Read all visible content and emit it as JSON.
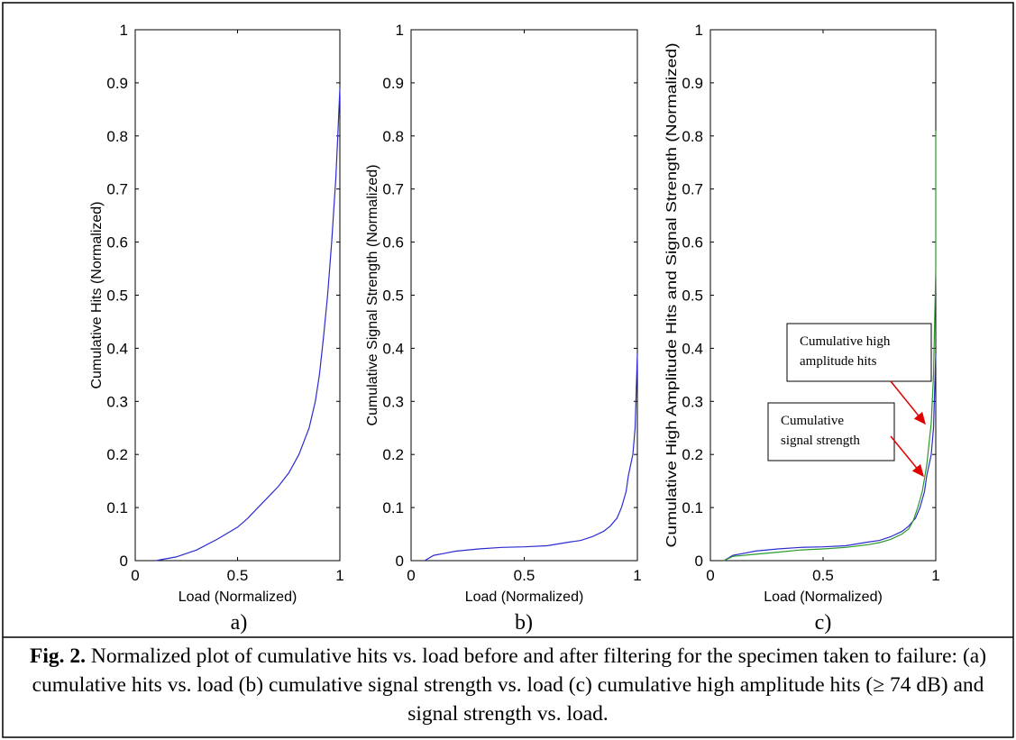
{
  "figure": {
    "caption_label": "Fig. 2.",
    "caption_text": " Normalized plot of cumulative hits vs. load before and after filtering for the specimen taken to failure: (a) cumulative hits vs. load  (b) cumulative signal strength vs. load  (c) cumulative high amplitude hits (≥ 74 dB) and signal strength vs. load."
  },
  "chart_data": [
    {
      "type": "line",
      "panel_label": "a)",
      "xlabel": "Load (Normalized)",
      "ylabel": "Cumulative Hits (Normalized)",
      "xlim": [
        0,
        1
      ],
      "ylim": [
        0,
        1
      ],
      "xticks": [
        "0",
        "0.5",
        "1"
      ],
      "yticks": [
        "0",
        "0.1",
        "0.2",
        "0.3",
        "0.4",
        "0.5",
        "0.6",
        "0.7",
        "0.8",
        "0.9",
        "1"
      ],
      "series": [
        {
          "color": "#2b2bd0",
          "x": [
            0.1,
            0.2,
            0.3,
            0.4,
            0.5,
            0.55,
            0.6,
            0.65,
            0.7,
            0.75,
            0.8,
            0.85,
            0.88,
            0.9,
            0.92,
            0.94,
            0.96,
            0.98,
            0.99,
            1.0
          ],
          "y": [
            0.0,
            0.007,
            0.02,
            0.04,
            0.063,
            0.08,
            0.1,
            0.12,
            0.14,
            0.165,
            0.2,
            0.25,
            0.3,
            0.35,
            0.42,
            0.5,
            0.6,
            0.72,
            0.8,
            0.89
          ]
        }
      ]
    },
    {
      "type": "line",
      "panel_label": "b)",
      "xlabel": "Load (Normalized)",
      "ylabel": "Cumulative Signal Strength (Normalized)",
      "xlim": [
        0,
        1
      ],
      "ylim": [
        0,
        1
      ],
      "xticks": [
        "0",
        "0.5",
        "1"
      ],
      "yticks": [
        "0",
        "0.1",
        "0.2",
        "0.3",
        "0.4",
        "0.5",
        "0.6",
        "0.7",
        "0.8",
        "0.9",
        "1"
      ],
      "series": [
        {
          "color": "#2b2bd0",
          "x": [
            0.06,
            0.1,
            0.15,
            0.2,
            0.3,
            0.4,
            0.5,
            0.6,
            0.7,
            0.75,
            0.8,
            0.85,
            0.88,
            0.91,
            0.93,
            0.95,
            0.96,
            0.97,
            0.98,
            0.99,
            1.0
          ],
          "y": [
            0.0,
            0.01,
            0.014,
            0.018,
            0.022,
            0.025,
            0.026,
            0.028,
            0.035,
            0.038,
            0.045,
            0.055,
            0.065,
            0.08,
            0.1,
            0.13,
            0.16,
            0.18,
            0.2,
            0.25,
            0.39
          ]
        }
      ]
    },
    {
      "type": "line",
      "panel_label": "c)",
      "xlabel": "Load (Normalized)",
      "ylabel": "Cumulative High Amplitude Hits and Signal Strength (Normalized)",
      "xlim": [
        0,
        1
      ],
      "ylim": [
        0,
        1
      ],
      "xticks": [
        "0",
        "0.5",
        "1"
      ],
      "yticks": [
        "0",
        "0.1",
        "0.2",
        "0.3",
        "0.4",
        "0.5",
        "0.6",
        "0.7",
        "0.8",
        "0.9",
        "1"
      ],
      "series": [
        {
          "color": "#2b2bd0",
          "x": [
            0.06,
            0.1,
            0.15,
            0.2,
            0.3,
            0.4,
            0.5,
            0.6,
            0.7,
            0.75,
            0.8,
            0.85,
            0.88,
            0.91,
            0.93,
            0.95,
            0.96,
            0.97,
            0.98,
            0.99,
            1.0
          ],
          "y": [
            0.0,
            0.01,
            0.014,
            0.018,
            0.022,
            0.025,
            0.026,
            0.028,
            0.035,
            0.038,
            0.045,
            0.055,
            0.065,
            0.08,
            0.1,
            0.13,
            0.16,
            0.18,
            0.2,
            0.25,
            0.39
          ]
        },
        {
          "color": "#2a9a2a",
          "x": [
            0.06,
            0.1,
            0.2,
            0.3,
            0.4,
            0.5,
            0.6,
            0.7,
            0.75,
            0.8,
            0.85,
            0.88,
            0.9,
            0.92,
            0.94,
            0.96,
            0.97,
            0.98,
            0.99,
            1.0,
            1.0
          ],
          "y": [
            0.0,
            0.008,
            0.012,
            0.016,
            0.02,
            0.022,
            0.025,
            0.03,
            0.034,
            0.04,
            0.05,
            0.06,
            0.075,
            0.1,
            0.13,
            0.18,
            0.22,
            0.26,
            0.35,
            0.55,
            0.81
          ]
        }
      ],
      "annotations": [
        {
          "lines": [
            "Cumulative high",
            "amplitude hits"
          ]
        },
        {
          "lines": [
            "Cumulative",
            "signal strength"
          ]
        }
      ],
      "annotation_arrow_color": "#e00000"
    }
  ]
}
